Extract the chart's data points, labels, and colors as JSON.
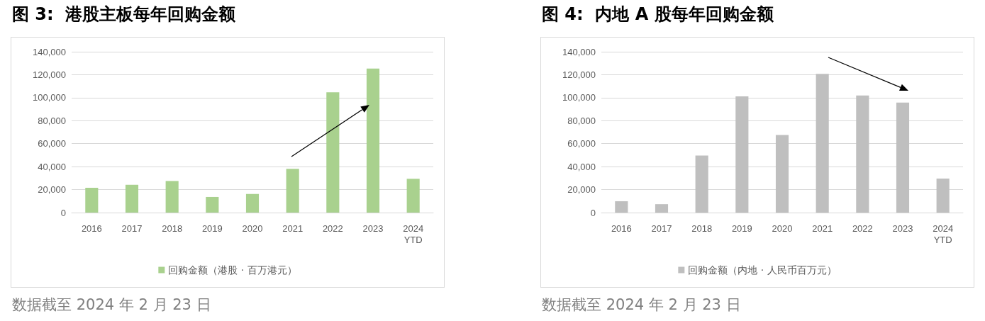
{
  "chart_data": [
    {
      "type": "bar",
      "title": "图 3:  港股主板每年回购金额",
      "categories": [
        "2016",
        "2017",
        "2018",
        "2019",
        "2020",
        "2021",
        "2022",
        "2023",
        "2024\nYTD"
      ],
      "series": [
        {
          "name": "回购金额（港股 · 百万港元）",
          "color": "#a9d18e",
          "values": [
            21600,
            24200,
            27500,
            13600,
            16200,
            38100,
            104700,
            125400,
            29400
          ]
        }
      ],
      "ylim": [
        0,
        140000
      ],
      "yticks": [
        {
          "value": 0,
          "label": "0"
        },
        {
          "value": 20000,
          "label": "20,000"
        },
        {
          "value": 40000,
          "label": "40,000"
        },
        {
          "value": 60000,
          "label": "60,000"
        },
        {
          "value": 80000,
          "label": "80,000"
        },
        {
          "value": 100000,
          "label": "100,000"
        },
        {
          "value": 120000,
          "label": "120,000"
        },
        {
          "value": 140000,
          "label": "140,000"
        }
      ],
      "grid": "y",
      "legend": "bottom",
      "annotations": [
        "数据截至 2024 年 2 月 23 日"
      ]
    },
    {
      "type": "bar",
      "title": "图 4:  内地 A 股每年回购金额",
      "categories": [
        "2016",
        "2017",
        "2018",
        "2019",
        "2020",
        "2021",
        "2022",
        "2023",
        "2024\nYTD"
      ],
      "series": [
        {
          "name": "回购金额（内地 · 人民币百万元）",
          "color": "#bfbfbf",
          "values": [
            9900,
            7300,
            49600,
            101200,
            67600,
            120800,
            101900,
            95700,
            29600
          ]
        }
      ],
      "ylim": [
        0,
        140000
      ],
      "yticks": [
        {
          "value": 0,
          "label": "0"
        },
        {
          "value": 20000,
          "label": "20,000"
        },
        {
          "value": 40000,
          "label": "40,000"
        },
        {
          "value": 60000,
          "label": "60,000"
        },
        {
          "value": 80000,
          "label": "80,000"
        },
        {
          "value": 100000,
          "label": "100,000"
        },
        {
          "value": 120000,
          "label": "120,000"
        },
        {
          "value": 140000,
          "label": "140,000"
        }
      ],
      "grid": "y",
      "legend": "bottom",
      "annotations": [
        "数据截至 2024 年 2 月 23 日"
      ]
    }
  ]
}
